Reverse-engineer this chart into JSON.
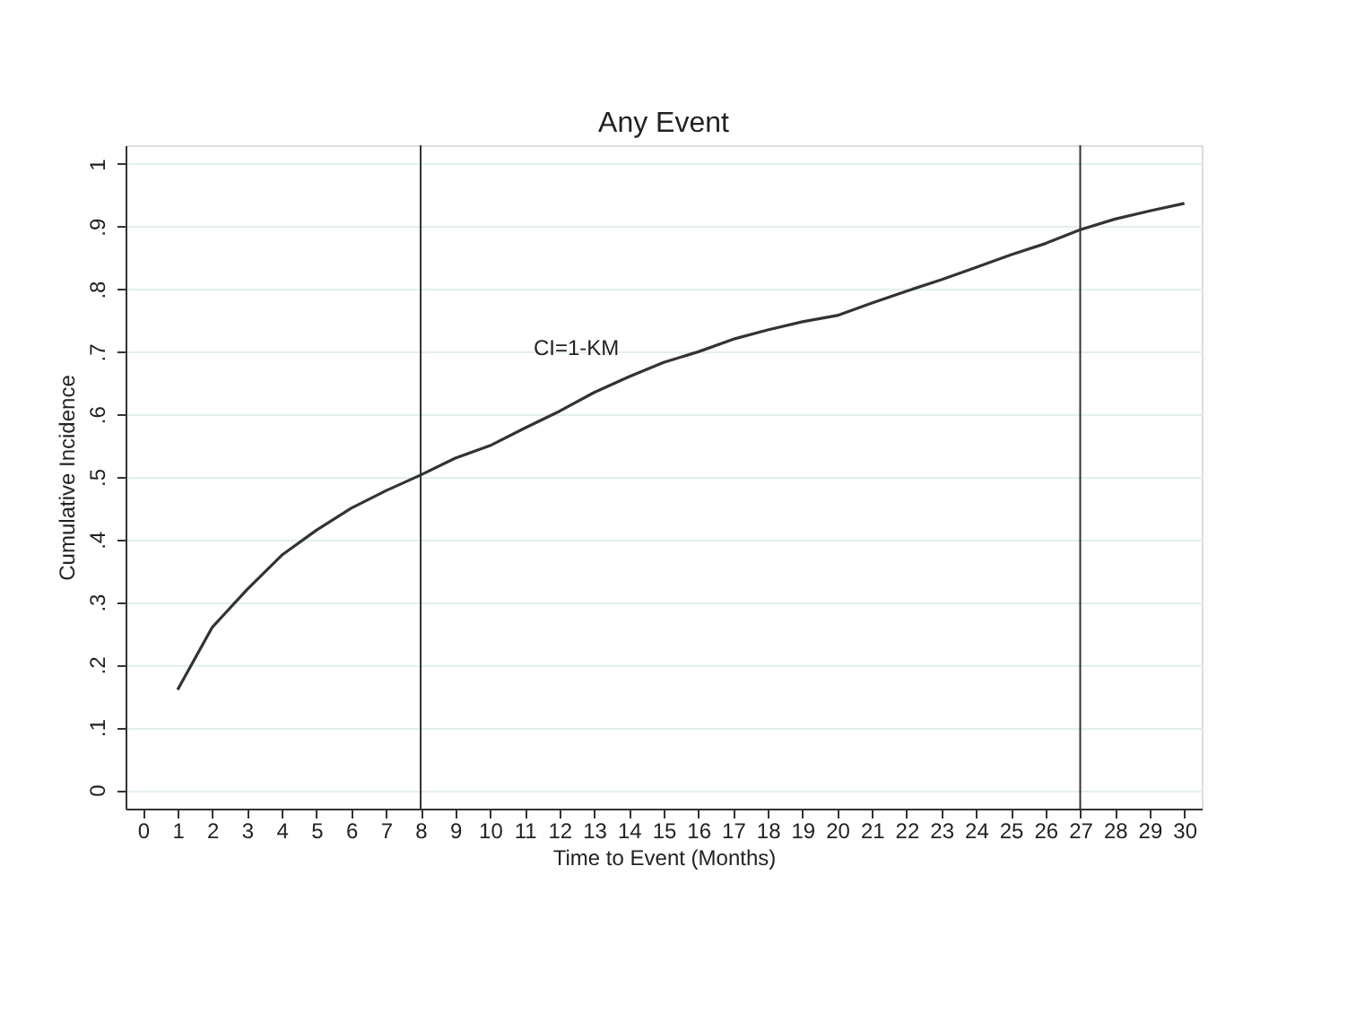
{
  "chart_data": {
    "type": "line",
    "title": "Any Event",
    "xlabel": "Time to Event (Months)",
    "ylabel": "Cumulative Incidence",
    "x": [
      1,
      2,
      3,
      4,
      5,
      6,
      7,
      8,
      9,
      10,
      11,
      12,
      13,
      14,
      15,
      16,
      17,
      18,
      19,
      20,
      21,
      22,
      23,
      24,
      25,
      26,
      27,
      28,
      29,
      30
    ],
    "series": [
      {
        "color": "#333333",
        "values": [
          0.16,
          0.26,
          0.32,
          0.375,
          0.415,
          0.45,
          0.478,
          0.503,
          0.53,
          0.55,
          0.578,
          0.605,
          0.635,
          0.66,
          0.683,
          0.7,
          0.72,
          0.735,
          0.748,
          0.758,
          0.778,
          0.797,
          0.815,
          0.835,
          0.855,
          0.873,
          0.895,
          0.912,
          0.925,
          0.937
        ]
      }
    ],
    "xlim": [
      -0.5,
      30.5
    ],
    "xticks": [
      0,
      1,
      2,
      3,
      4,
      5,
      6,
      7,
      8,
      9,
      10,
      11,
      12,
      13,
      14,
      15,
      16,
      17,
      18,
      19,
      20,
      21,
      22,
      23,
      24,
      25,
      26,
      27,
      28,
      29,
      30
    ],
    "ylim": [
      -0.03,
      1.03
    ],
    "yticks": [
      {
        "value": 0,
        "label": "0"
      },
      {
        "value": 0.1,
        "label": ".1"
      },
      {
        "value": 0.2,
        "label": ".2"
      },
      {
        "value": 0.3,
        "label": ".3"
      },
      {
        "value": 0.4,
        "label": ".4"
      },
      {
        "value": 0.5,
        "label": ".5"
      },
      {
        "value": 0.6,
        "label": ".6"
      },
      {
        "value": 0.7,
        "label": ".7"
      },
      {
        "value": 0.8,
        "label": ".8"
      },
      {
        "value": 0.9,
        "label": ".9"
      },
      {
        "value": 1,
        "label": "1"
      }
    ],
    "grid": "y",
    "marker": "none",
    "line_style": "solid",
    "ref_lines": [
      {
        "axis": "x",
        "value": 8,
        "color": "#333333"
      },
      {
        "axis": "x",
        "value": 27,
        "color": "#333333"
      }
    ],
    "annotations": [
      "CI=1-KM"
    ]
  }
}
